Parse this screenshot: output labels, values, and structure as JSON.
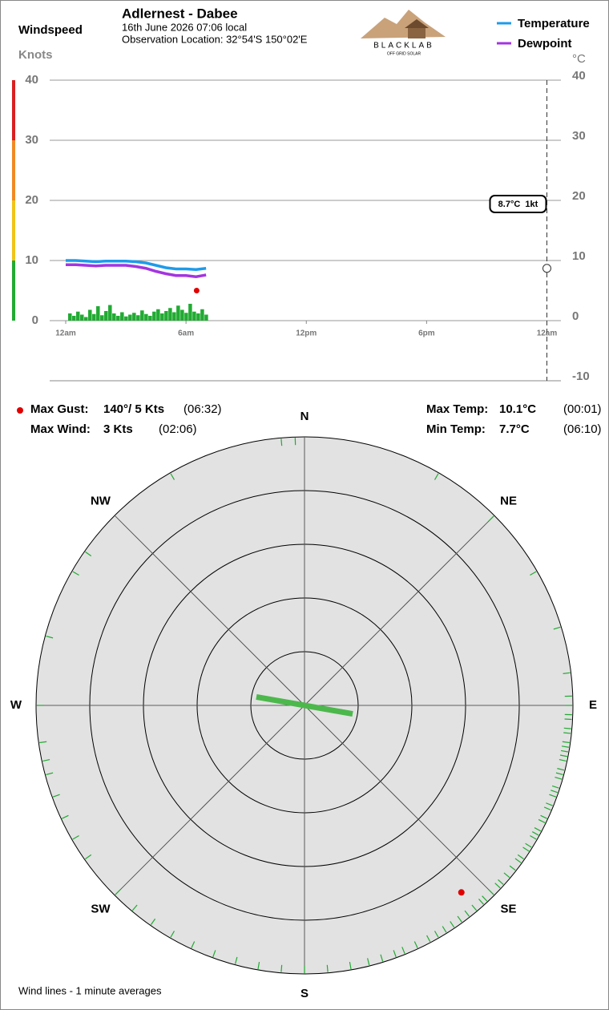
{
  "header": {
    "title": "Adlernest - Dabee",
    "date": "16th June 2026  07:06 local",
    "location": "Observation Location: 32°54'S 150°02'E",
    "logo": "BLACKLAB",
    "logo_tagline": "OFF GRID SOLAR"
  },
  "chart_data": [
    {
      "type": "line",
      "y_label": "Windspeed",
      "y_unit": "Knots",
      "y2_unit": "°C",
      "xlim": [
        -0.8,
        24.7
      ],
      "xticks": [
        {
          "value": 0,
          "label": "12am"
        },
        {
          "value": 6,
          "label": "6am"
        },
        {
          "value": 12,
          "label": "12pm"
        },
        {
          "value": 18,
          "label": "6pm"
        },
        {
          "value": 24,
          "label": "12am"
        }
      ],
      "ylim": [
        -10,
        40
      ],
      "yticks": [
        0,
        10,
        20,
        30,
        40
      ],
      "y2lim": [
        -10,
        40
      ],
      "y2ticks": [
        -10,
        0,
        10,
        20,
        30,
        40
      ],
      "grid": true,
      "legend": "top-right",
      "series": [
        {
          "name": "Temperature",
          "color": "#1e9be9",
          "axis": "y2",
          "x": [
            0,
            0.5,
            1,
            1.5,
            2,
            2.5,
            3,
            3.5,
            4,
            4.5,
            5,
            5.5,
            6,
            6.5,
            7
          ],
          "values": [
            10.0,
            10.0,
            9.9,
            9.8,
            9.9,
            9.9,
            9.9,
            9.8,
            9.6,
            9.2,
            8.8,
            8.6,
            8.6,
            8.5,
            8.7
          ]
        },
        {
          "name": "Dewpoint",
          "color": "#a335e0",
          "axis": "y2",
          "x": [
            0,
            0.5,
            1,
            1.5,
            2,
            2.5,
            3,
            3.5,
            4,
            4.5,
            5,
            5.5,
            6,
            6.5,
            7
          ],
          "values": [
            9.3,
            9.3,
            9.2,
            9.1,
            9.2,
            9.2,
            9.2,
            9.0,
            8.7,
            8.2,
            7.8,
            7.5,
            7.5,
            7.3,
            7.6
          ]
        }
      ],
      "wind": {
        "color": "#22aa33",
        "x": [
          0.2,
          0.4,
          0.6,
          0.8,
          1.0,
          1.2,
          1.4,
          1.6,
          1.8,
          2.0,
          2.2,
          2.4,
          2.6,
          2.8,
          3.0,
          3.2,
          3.4,
          3.6,
          3.8,
          4.0,
          4.2,
          4.4,
          4.6,
          4.8,
          5.0,
          5.2,
          5.4,
          5.6,
          5.8,
          6.0,
          6.2,
          6.4,
          6.6,
          6.8,
          7.0
        ],
        "values": [
          1.2,
          0.8,
          1.5,
          1.0,
          0.6,
          1.8,
          1.1,
          2.4,
          0.9,
          1.6,
          2.6,
          1.2,
          0.8,
          1.4,
          0.7,
          1.0,
          1.3,
          0.9,
          1.7,
          1.1,
          0.8,
          1.5,
          1.9,
          1.2,
          1.6,
          2.1,
          1.4,
          2.5,
          1.8,
          1.3,
          2.8,
          1.5,
          1.2,
          1.9,
          1.0
        ]
      },
      "gust_point": {
        "x": 6.53,
        "value": 5,
        "color": "#e00000"
      },
      "current": {
        "x": 24,
        "temperature": 8.7,
        "label": "8.7°C  1kt"
      }
    },
    {
      "type": "polar",
      "rlim": [
        0,
        5.5
      ],
      "compass": [
        {
          "value": 0,
          "label": "N"
        },
        {
          "value": 45,
          "label": "NE"
        },
        {
          "value": 90,
          "label": "E"
        },
        {
          "value": 135,
          "label": "SE"
        },
        {
          "value": 180,
          "label": "S"
        },
        {
          "value": 225,
          "label": "SW"
        },
        {
          "value": 270,
          "label": "W"
        },
        {
          "value": 315,
          "label": "NW"
        }
      ],
      "wind_directions": [
        88,
        90,
        92,
        93,
        95,
        96,
        98,
        99,
        100,
        101,
        102,
        104,
        105,
        106,
        108,
        109,
        110,
        112,
        113,
        115,
        116,
        118,
        119,
        120,
        122,
        123,
        125,
        126,
        128,
        130,
        132,
        133,
        135,
        137,
        138,
        140,
        142,
        144,
        146,
        148,
        150,
        152,
        155,
        158,
        160,
        163,
        166,
        170,
        175,
        180,
        185,
        190,
        195,
        200,
        205,
        210,
        215,
        220,
        225,
        235,
        240,
        245,
        250,
        255,
        258,
        262,
        270,
        285,
        300,
        305,
        330,
        355,
        358,
        30,
        45,
        60,
        73,
        83
      ],
      "wind_color": "#22aa33",
      "gust": {
        "direction": 140,
        "speed": 5,
        "color": "#e00000"
      },
      "current_direction": 100,
      "note": "Wind lines - 1 minute averages"
    }
  ],
  "stats": {
    "max_gust_label": "Max Gust:",
    "max_gust": "140°/ 5 Kts",
    "max_gust_time": "(06:32)",
    "max_wind_label": "Max Wind:",
    "max_wind": "3 Kts",
    "max_wind_time": "(02:06)",
    "max_temp_label": "Max Temp:",
    "max_temp": "10.1°C",
    "max_temp_time": "(00:01)",
    "min_temp_label": "Min Temp:",
    "min_temp": "7.7°C",
    "min_temp_time": "(06:10)"
  }
}
